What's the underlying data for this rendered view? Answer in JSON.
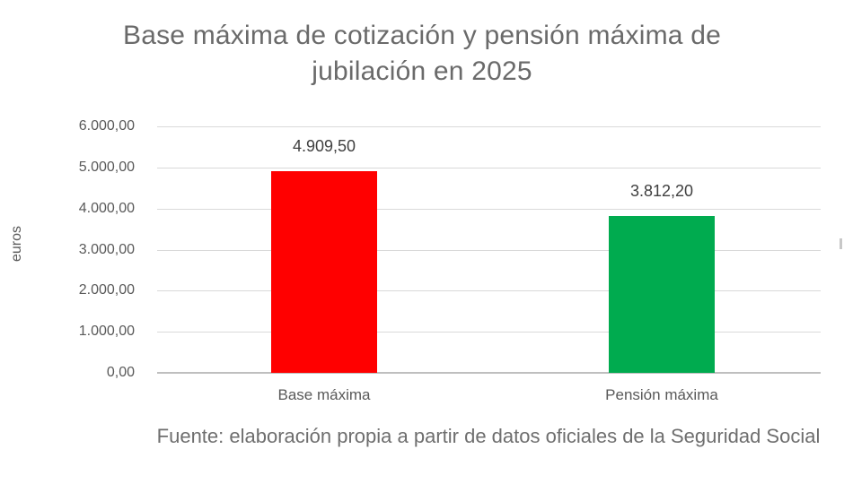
{
  "page": {
    "background": "#ffffff"
  },
  "chart_data": {
    "type": "bar",
    "title": "Base máxima de cotización y pensión máxima de jubilación en 2025",
    "categories": [
      "Base máxima",
      "Pensión máxima"
    ],
    "values": [
      4909.5,
      3812.2
    ],
    "value_labels": [
      "4.909,50",
      "3.812,20"
    ],
    "bar_colors": [
      "#ff0000",
      "#00ab4f"
    ],
    "xlabel": "",
    "ylabel": "euros",
    "ylim": [
      0,
      6000
    ],
    "ytick_step": 1000,
    "ytick_labels": [
      "6.000,00",
      "5.000,00",
      "4.000,00",
      "3.000,00",
      "2.000,00",
      "1.000,00",
      "0,00"
    ],
    "grid": true,
    "legend": "none",
    "gridline_color": "#d9d9d9",
    "axis_line_color": "#bfbfbf",
    "source_note": "Fuente: elaboración propia a partir de datos oficiales de la Seguridad Social"
  }
}
